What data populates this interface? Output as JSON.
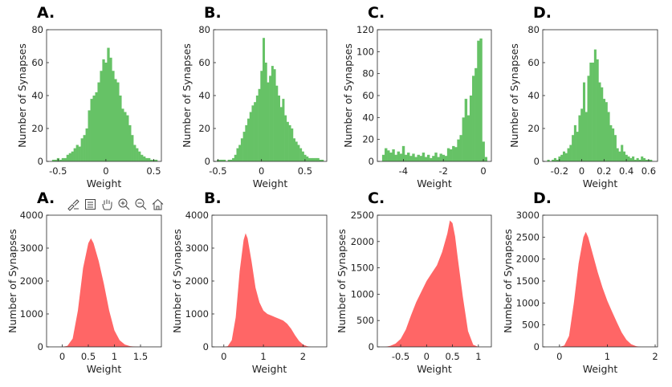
{
  "toolbar": {
    "icons": [
      "brush-icon",
      "data-tips-icon",
      "pan-hand-icon",
      "zoom-in-icon",
      "zoom-out-icon",
      "home-icon"
    ]
  },
  "colors": {
    "top_row_bars": "#66c266",
    "bottom_row_bars": "#ff6666"
  },
  "chart_data": [
    {
      "type": "bar",
      "panel_label": "A.",
      "xlabel": "Weight",
      "ylabel": "Number of Synapses",
      "xlim": [
        -0.62,
        0.58
      ],
      "ylim": [
        0,
        80
      ],
      "xticks": [
        -0.5,
        0,
        0.5
      ],
      "xtick_labels": [
        "-0.5",
        "0",
        "0.5"
      ],
      "yticks": [
        0,
        20,
        40,
        60,
        80
      ],
      "ytick_labels": [
        "0",
        "20",
        "40",
        "60",
        "80"
      ],
      "x": [
        -0.55,
        -0.525,
        -0.5,
        -0.475,
        -0.45,
        -0.425,
        -0.4,
        -0.375,
        -0.35,
        -0.325,
        -0.3,
        -0.275,
        -0.25,
        -0.225,
        -0.2,
        -0.175,
        -0.15,
        -0.125,
        -0.1,
        -0.075,
        -0.05,
        -0.025,
        0,
        0.025,
        0.05,
        0.075,
        0.1,
        0.125,
        0.15,
        0.175,
        0.2,
        0.225,
        0.25,
        0.275,
        0.3,
        0.325,
        0.35,
        0.375,
        0.4,
        0.425,
        0.45,
        0.475,
        0.5,
        0.525
      ],
      "values": [
        1,
        1,
        2,
        1,
        2,
        2,
        4,
        5,
        6,
        8,
        10,
        9,
        14,
        16,
        20,
        31,
        38,
        40,
        42,
        48,
        55,
        62,
        60,
        69,
        63,
        55,
        50,
        48,
        40,
        32,
        30,
        28,
        22,
        16,
        10,
        8,
        6,
        4,
        3,
        2,
        2,
        1,
        1,
        1
      ]
    },
    {
      "type": "bar",
      "panel_label": "B.",
      "xlabel": "Weight",
      "ylabel": "Number of Synapses",
      "xlim": [
        -0.55,
        0.75
      ],
      "ylim": [
        0,
        80
      ],
      "xticks": [
        -0.5,
        0,
        0.5
      ],
      "xtick_labels": [
        "-0.5",
        "0",
        "0.5"
      ],
      "yticks": [
        0,
        20,
        40,
        60,
        80
      ],
      "ytick_labels": [
        "0",
        "20",
        "40",
        "60",
        "80"
      ],
      "x": [
        -0.5,
        -0.475,
        -0.45,
        -0.425,
        -0.4,
        -0.375,
        -0.35,
        -0.325,
        -0.3,
        -0.275,
        -0.25,
        -0.225,
        -0.2,
        -0.175,
        -0.15,
        -0.125,
        -0.1,
        -0.075,
        -0.05,
        -0.025,
        0,
        0.025,
        0.05,
        0.075,
        0.1,
        0.125,
        0.15,
        0.175,
        0.2,
        0.225,
        0.25,
        0.275,
        0.3,
        0.325,
        0.35,
        0.375,
        0.4,
        0.425,
        0.45,
        0.475,
        0.5,
        0.525,
        0.55,
        0.575,
        0.6,
        0.625,
        0.65,
        0.675,
        0.7
      ],
      "values": [
        1,
        1,
        1,
        1,
        0,
        1,
        1,
        2,
        4,
        8,
        10,
        14,
        18,
        22,
        26,
        30,
        34,
        36,
        40,
        44,
        55,
        75,
        60,
        48,
        52,
        58,
        56,
        46,
        40,
        33,
        38,
        28,
        24,
        22,
        20,
        14,
        12,
        10,
        8,
        6,
        4,
        3,
        2,
        2,
        2,
        2,
        2,
        1,
        1
      ]
    },
    {
      "type": "bar",
      "panel_label": "C.",
      "xlabel": "Weight",
      "ylabel": "Number of Synapses",
      "xlim": [
        -5.3,
        0.4
      ],
      "ylim": [
        0,
        120
      ],
      "xticks": [
        -4,
        -2,
        0
      ],
      "xtick_labels": [
        "-4",
        "-2",
        "0"
      ],
      "yticks": [
        0,
        20,
        40,
        60,
        80,
        100,
        120
      ],
      "ytick_labels": [
        "0",
        "20",
        "40",
        "60",
        "80",
        "100",
        "120"
      ],
      "x": [
        -5.0,
        -4.875,
        -4.75,
        -4.625,
        -4.5,
        -4.375,
        -4.25,
        -4.125,
        -4.0,
        -3.875,
        -3.75,
        -3.625,
        -3.5,
        -3.375,
        -3.25,
        -3.125,
        -3.0,
        -2.875,
        -2.75,
        -2.625,
        -2.5,
        -2.375,
        -2.25,
        -2.125,
        -2.0,
        -1.875,
        -1.75,
        -1.625,
        -1.5,
        -1.375,
        -1.25,
        -1.125,
        -1.0,
        -0.875,
        -0.75,
        -0.625,
        -0.5,
        -0.375,
        -0.25,
        -0.125,
        0.0,
        0.125
      ],
      "values": [
        6,
        12,
        10,
        8,
        11,
        6,
        9,
        7,
        14,
        6,
        8,
        5,
        7,
        4,
        6,
        5,
        8,
        4,
        6,
        3,
        5,
        8,
        4,
        7,
        6,
        5,
        12,
        11,
        14,
        13,
        20,
        24,
        40,
        57,
        42,
        60,
        78,
        85,
        110,
        112,
        18,
        4
      ]
    },
    {
      "type": "bar",
      "panel_label": "D.",
      "xlabel": "Weight",
      "ylabel": "Number of Synapses",
      "xlim": [
        -0.35,
        0.68
      ],
      "ylim": [
        0,
        80
      ],
      "xticks": [
        -0.2,
        0,
        0.2,
        0.4,
        0.6
      ],
      "xtick_labels": [
        "-0.2",
        "0",
        "0.2",
        "0.4",
        "0.6"
      ],
      "yticks": [
        0,
        20,
        40,
        60,
        80
      ],
      "ytick_labels": [
        "0",
        "20",
        "40",
        "60",
        "80"
      ],
      "x": [
        -0.3,
        -0.28,
        -0.26,
        -0.24,
        -0.22,
        -0.2,
        -0.18,
        -0.16,
        -0.14,
        -0.12,
        -0.1,
        -0.08,
        -0.06,
        -0.04,
        -0.02,
        0,
        0.02,
        0.04,
        0.06,
        0.08,
        0.1,
        0.12,
        0.14,
        0.16,
        0.18,
        0.2,
        0.22,
        0.24,
        0.26,
        0.28,
        0.3,
        0.32,
        0.34,
        0.36,
        0.38,
        0.4,
        0.42,
        0.44,
        0.46,
        0.48,
        0.5,
        0.52,
        0.54,
        0.56,
        0.58,
        0.6,
        0.62
      ],
      "values": [
        1,
        0,
        1,
        2,
        1,
        3,
        4,
        6,
        5,
        8,
        10,
        16,
        22,
        18,
        28,
        32,
        48,
        30,
        52,
        60,
        60,
        68,
        62,
        48,
        45,
        38,
        36,
        30,
        22,
        20,
        16,
        8,
        6,
        10,
        6,
        4,
        3,
        2,
        3,
        1,
        2,
        1,
        3,
        2,
        1,
        1,
        1
      ]
    },
    {
      "type": "area",
      "panel_label": "A.",
      "xlabel": "Weight",
      "ylabel": "Number of Synapses",
      "xlim": [
        -0.3,
        1.9
      ],
      "ylim": [
        0,
        4000
      ],
      "xticks": [
        0,
        0.5,
        1,
        1.5
      ],
      "xtick_labels": [
        "0",
        "0.5",
        "1",
        "1.5"
      ],
      "yticks": [
        0,
        1000,
        2000,
        3000,
        4000
      ],
      "ytick_labels": [
        "0",
        "1000",
        "2000",
        "3000",
        "4000"
      ],
      "x": [
        0,
        0.1,
        0.2,
        0.3,
        0.4,
        0.5,
        0.55,
        0.6,
        0.7,
        0.8,
        0.9,
        1.0,
        1.1,
        1.2,
        1.3,
        1.4,
        1.5
      ],
      "values": [
        0,
        30,
        250,
        1100,
        2400,
        3150,
        3300,
        3150,
        2600,
        1900,
        1100,
        500,
        200,
        70,
        20,
        5,
        0
      ]
    },
    {
      "type": "area",
      "panel_label": "B.",
      "xlabel": "Weight",
      "ylabel": "Number of Synapses",
      "xlim": [
        -0.3,
        2.6
      ],
      "ylim": [
        0,
        4000
      ],
      "xticks": [
        0,
        1,
        2
      ],
      "xtick_labels": [
        "0",
        "1",
        "2"
      ],
      "yticks": [
        0,
        1000,
        2000,
        3000,
        4000
      ],
      "ytick_labels": [
        "0",
        "1000",
        "2000",
        "3000",
        "4000"
      ],
      "x": [
        0,
        0.1,
        0.2,
        0.3,
        0.4,
        0.5,
        0.55,
        0.6,
        0.7,
        0.8,
        0.9,
        1.0,
        1.1,
        1.2,
        1.3,
        1.4,
        1.5,
        1.6,
        1.7,
        1.8,
        1.9,
        2.0,
        2.1,
        2.2
      ],
      "values": [
        0,
        20,
        200,
        900,
        2300,
        3250,
        3450,
        3300,
        2600,
        1800,
        1350,
        1100,
        1000,
        950,
        900,
        850,
        800,
        700,
        550,
        350,
        180,
        70,
        20,
        0
      ]
    },
    {
      "type": "area",
      "panel_label": "C.",
      "xlabel": "Weight",
      "ylabel": "Number of Synapses",
      "xlim": [
        -0.95,
        1.25
      ],
      "ylim": [
        0,
        2500
      ],
      "xticks": [
        -0.5,
        0,
        0.5,
        1
      ],
      "xtick_labels": [
        "-0.5",
        "0",
        "0.5",
        "1"
      ],
      "yticks": [
        0,
        500,
        1000,
        1500,
        2000,
        2500
      ],
      "ytick_labels": [
        "0",
        "500",
        "1000",
        "1500",
        "2000",
        "2500"
      ],
      "x": [
        -0.8,
        -0.7,
        -0.6,
        -0.5,
        -0.4,
        -0.3,
        -0.2,
        -0.1,
        0,
        0.1,
        0.2,
        0.3,
        0.4,
        0.45,
        0.5,
        0.55,
        0.6,
        0.7,
        0.8,
        0.9,
        1.0
      ],
      "values": [
        0,
        20,
        60,
        150,
        330,
        600,
        850,
        1050,
        1250,
        1400,
        1550,
        1800,
        2150,
        2400,
        2350,
        2100,
        1700,
        950,
        300,
        40,
        0
      ]
    },
    {
      "type": "area",
      "panel_label": "D.",
      "xlabel": "Weight",
      "ylabel": "Number of Synapses",
      "xlim": [
        -0.35,
        2.05
      ],
      "ylim": [
        0,
        3000
      ],
      "xticks": [
        0,
        1,
        2
      ],
      "xtick_labels": [
        "0",
        "1",
        "2"
      ],
      "yticks": [
        0,
        500,
        1000,
        1500,
        2000,
        2500,
        3000
      ],
      "ytick_labels": [
        "0",
        "500",
        "1000",
        "1500",
        "2000",
        "2500",
        "3000"
      ],
      "x": [
        0,
        0.1,
        0.2,
        0.3,
        0.4,
        0.5,
        0.55,
        0.6,
        0.7,
        0.8,
        0.9,
        1.0,
        1.1,
        1.2,
        1.3,
        1.4,
        1.5,
        1.6,
        1.7
      ],
      "values": [
        0,
        30,
        250,
        1000,
        1900,
        2500,
        2620,
        2500,
        2100,
        1700,
        1350,
        1050,
        800,
        560,
        330,
        160,
        60,
        15,
        0
      ]
    }
  ]
}
